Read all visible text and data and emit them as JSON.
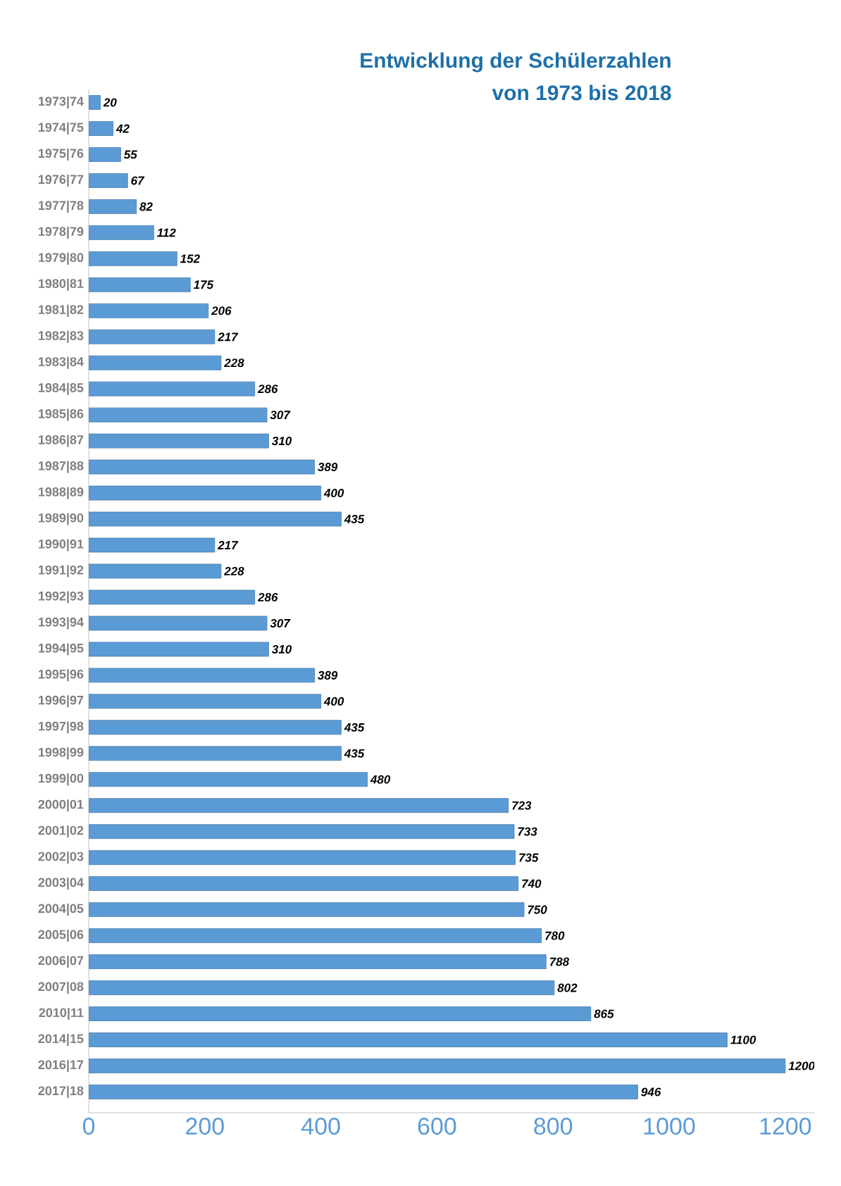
{
  "chart_data": {
    "type": "bar",
    "orientation": "horizontal",
    "title": "Entwicklung der Schülerzahlen",
    "subtitle": "von 1973 bis 2018",
    "categories": [
      "1973|74",
      "1974|75",
      "1975|76",
      "1976|77",
      "1977|78",
      "1978|79",
      "1979|80",
      "1980|81",
      "1981|82",
      "1982|83",
      "1983|84",
      "1984|85",
      "1985|86",
      "1986|87",
      "1987|88",
      "1988|89",
      "1989|90",
      "1990|91",
      "1991|92",
      "1992|93",
      "1993|94",
      "1994|95",
      "1995|96",
      "1996|97",
      "1997|98",
      "1998|99",
      "1999|00",
      "2000|01",
      "2001|02",
      "2002|03",
      "2003|04",
      "2004|05",
      "2005|06",
      "2006|07",
      "2007|08",
      "2010|11",
      "2014|15",
      "2016|17",
      "2017|18"
    ],
    "values": [
      20,
      42,
      55,
      67,
      82,
      112,
      152,
      175,
      206,
      217,
      228,
      286,
      307,
      310,
      389,
      400,
      435,
      217,
      228,
      286,
      307,
      310,
      389,
      400,
      435,
      435,
      480,
      723,
      733,
      735,
      740,
      750,
      780,
      788,
      802,
      865,
      1100,
      1200,
      946
    ],
    "color": "#5b9bd5",
    "data_labels": true,
    "xlim": [
      0,
      1250
    ],
    "xticks": [
      0,
      200,
      400,
      600,
      800,
      1000,
      1200
    ],
    "grid": false
  }
}
